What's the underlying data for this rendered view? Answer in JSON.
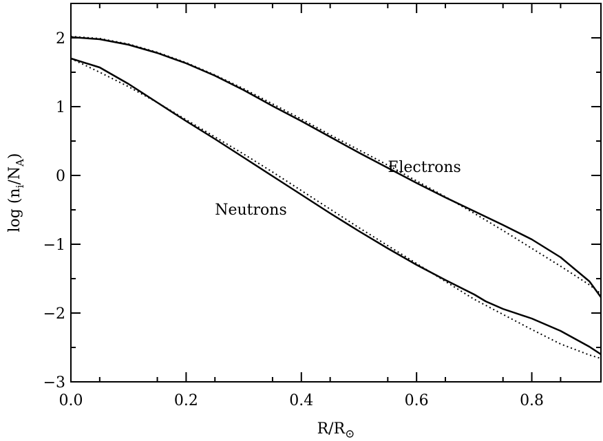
{
  "chart_data": {
    "type": "line",
    "xlabel": {
      "main": "R/R",
      "sub": "⊙"
    },
    "ylabel": {
      "pre": "log (n",
      "sub1": "i",
      "mid": "/N",
      "sub2": "A",
      "post": ")"
    },
    "xlim": [
      0.0,
      0.92
    ],
    "ylim": [
      -3.0,
      2.5
    ],
    "x_ticks": [
      {
        "value": 0.0,
        "label": "0.0"
      },
      {
        "value": 0.2,
        "label": "0.2"
      },
      {
        "value": 0.4,
        "label": "0.4"
      },
      {
        "value": 0.6,
        "label": "0.6"
      },
      {
        "value": 0.8,
        "label": "0.8"
      }
    ],
    "y_ticks": [
      {
        "value": 2,
        "label": "2"
      },
      {
        "value": 1,
        "label": "1"
      },
      {
        "value": 0,
        "label": "0"
      },
      {
        "value": -1,
        "label": "−1"
      },
      {
        "value": -2,
        "label": "−2"
      },
      {
        "value": -3,
        "label": "−3"
      }
    ],
    "annotations": [
      {
        "text": "Electrons",
        "x": 0.55,
        "y": 0.05
      },
      {
        "text": "Neutrons",
        "x": 0.25,
        "y": -0.57
      }
    ],
    "series": [
      {
        "label": "Electrons",
        "style": "solid",
        "x": [
          0.0,
          0.05,
          0.1,
          0.15,
          0.2,
          0.25,
          0.3,
          0.35,
          0.4,
          0.45,
          0.5,
          0.55,
          0.6,
          0.65,
          0.7,
          0.75,
          0.8,
          0.85,
          0.9,
          0.92
        ],
        "y": [
          2.01,
          1.98,
          1.9,
          1.78,
          1.63,
          1.45,
          1.24,
          1.01,
          0.79,
          0.56,
          0.33,
          0.11,
          -0.11,
          -0.32,
          -0.52,
          -0.72,
          -0.93,
          -1.19,
          -1.54,
          -1.77
        ]
      },
      {
        "label": "Electrons fit",
        "style": "dotted",
        "x": [
          0.0,
          0.05,
          0.1,
          0.15,
          0.2,
          0.25,
          0.3,
          0.35,
          0.4,
          0.45,
          0.5,
          0.55,
          0.6,
          0.65,
          0.7,
          0.75,
          0.8,
          0.85,
          0.9,
          0.92
        ],
        "y": [
          2.02,
          1.99,
          1.91,
          1.79,
          1.64,
          1.46,
          1.26,
          1.04,
          0.82,
          0.59,
          0.37,
          0.15,
          -0.08,
          -0.31,
          -0.55,
          -0.8,
          -1.06,
          -1.32,
          -1.59,
          -1.72
        ]
      },
      {
        "label": "Neutrons",
        "style": "solid",
        "x": [
          0.0,
          0.05,
          0.1,
          0.15,
          0.2,
          0.25,
          0.3,
          0.35,
          0.4,
          0.45,
          0.5,
          0.55,
          0.6,
          0.65,
          0.7,
          0.72,
          0.75,
          0.8,
          0.85,
          0.9,
          0.92
        ],
        "y": [
          1.7,
          1.57,
          1.33,
          1.06,
          0.79,
          0.53,
          0.26,
          -0.01,
          -0.28,
          -0.55,
          -0.81,
          -1.06,
          -1.3,
          -1.52,
          -1.73,
          -1.83,
          -1.94,
          -2.08,
          -2.26,
          -2.49,
          -2.6
        ]
      },
      {
        "label": "Neutrons fit",
        "style": "dotted",
        "x": [
          0.0,
          0.05,
          0.1,
          0.15,
          0.2,
          0.25,
          0.3,
          0.35,
          0.4,
          0.45,
          0.5,
          0.55,
          0.6,
          0.65,
          0.7,
          0.75,
          0.8,
          0.85,
          0.9,
          0.92
        ],
        "y": [
          1.7,
          1.5,
          1.29,
          1.06,
          0.81,
          0.56,
          0.31,
          0.05,
          -0.22,
          -0.49,
          -0.76,
          -1.02,
          -1.28,
          -1.54,
          -1.8,
          -2.02,
          -2.24,
          -2.45,
          -2.61,
          -2.66
        ]
      }
    ],
    "grid": false,
    "legend": "none"
  },
  "colors": {
    "line": "#000000",
    "background": "#ffffff"
  }
}
